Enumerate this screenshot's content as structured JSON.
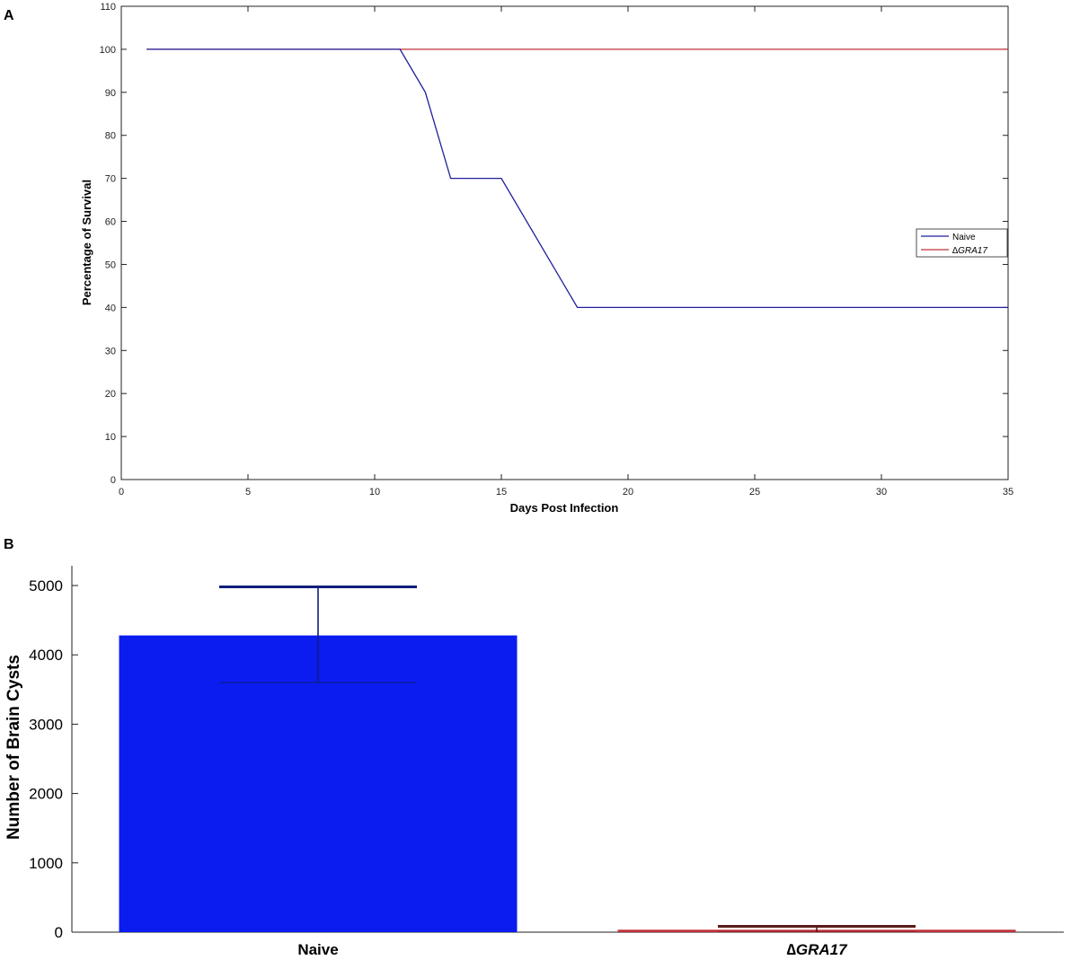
{
  "chart_data": [
    {
      "panel": "A",
      "type": "line",
      "xlabel": "Days Post Infection",
      "ylabel": "Percentage of Survival",
      "xlim": [
        0,
        35
      ],
      "ylim": [
        0,
        110
      ],
      "xticks": [
        0,
        5,
        10,
        15,
        20,
        25,
        30,
        35
      ],
      "yticks": [
        0,
        10,
        20,
        30,
        40,
        50,
        60,
        70,
        80,
        90,
        100,
        110
      ],
      "grid": false,
      "legend_position": "right",
      "series": [
        {
          "name": "Naive",
          "color": "#1f1f9a",
          "x": [
            1,
            11,
            12,
            13,
            15,
            18,
            35
          ],
          "y": [
            100,
            100,
            90,
            70,
            70,
            40,
            40
          ]
        },
        {
          "name": "∆GRA17",
          "color": "#c0303a",
          "x": [
            1,
            35
          ],
          "y": [
            100,
            100
          ]
        }
      ]
    },
    {
      "panel": "B",
      "type": "bar",
      "ylabel": "Number of Brain Cysts",
      "categories": [
        "Naive",
        "∆GRA17"
      ],
      "values": [
        4280,
        35
      ],
      "error_upper": [
        4980,
        85
      ],
      "error_lower": [
        3600,
        0
      ],
      "colors": [
        "#0a1cf0",
        "#c0303a"
      ],
      "error_colors": [
        "#0f1f7a",
        "#5a1a1a"
      ],
      "ylim": [
        0,
        5000
      ],
      "yticks": [
        0,
        1000,
        2000,
        3000,
        4000,
        5000
      ],
      "grid": false
    }
  ]
}
